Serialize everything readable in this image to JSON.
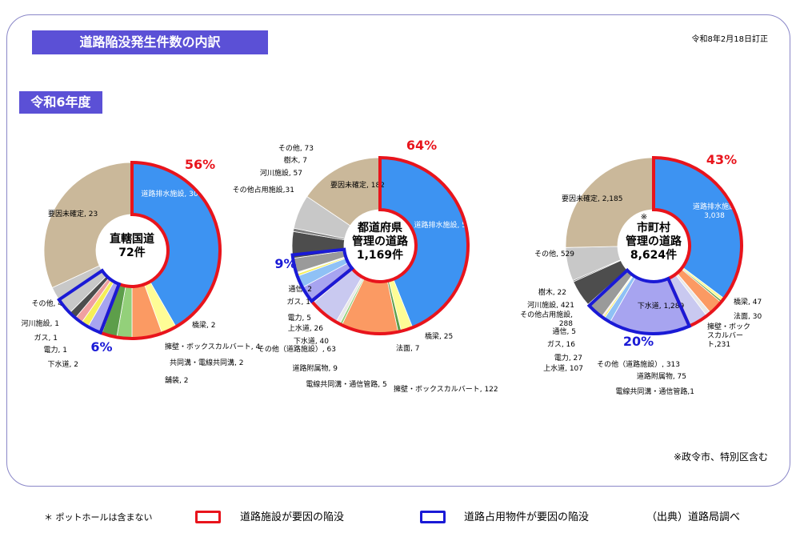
{
  "title": "道路陥没発生件数の内訳",
  "revision_note": "令和8年2月18日訂正",
  "year_label": "令和6年度",
  "footnote_right": "※政令市、特別区含む",
  "footer": {
    "asterisk_note": "＊ ポットホールは含まない",
    "legend_red": "道路施設が要因の陥没",
    "legend_blue": "道路占用物件が要因の陥没",
    "source": "（出典）道路局調べ"
  },
  "colors": {
    "accent": "#5b50d6",
    "facility_outline": "#e8141c",
    "occupancy_outline": "#1a1ad6",
    "drain": "#3d93f2",
    "bridge": "#fefc96",
    "retaining_wall": "#fb9a63",
    "utility_conduit": "#93d07a",
    "pavement": "#5d9e4a",
    "sewer": "#a7a4f0",
    "power": "#f5ef58",
    "gas": "#f0a0a0",
    "telecom": "#f8e6a6",
    "river": "#4d4d4d",
    "other_occupancy": "#9a9a9a",
    "trees": "#7a7a7a",
    "other": "#c8c8c8",
    "unknown": "#cab89a"
  },
  "chart_data": [
    {
      "type": "pie",
      "title": "直轄国道",
      "total": "72件",
      "facility_percent": "56%",
      "occupancy_percent": "6%",
      "labels": [
        {
          "key": "drain",
          "text": "道路排水施設, 30",
          "value": 30
        },
        {
          "key": "bridge",
          "text": "橋梁, 2",
          "value": 2
        },
        {
          "key": "retaining_wall",
          "text": "擁壁・ボックスカルバート, 4",
          "value": 4
        },
        {
          "key": "utility_conduit",
          "text": "共同溝・電線共同溝, 2",
          "value": 2
        },
        {
          "key": "pavement",
          "text": "舗装, 2",
          "value": 2
        },
        {
          "key": "sewer",
          "text": "下水道, 2",
          "value": 2
        },
        {
          "key": "power",
          "text": "電力, 1",
          "value": 1
        },
        {
          "key": "gas",
          "text": "ガス, 1",
          "value": 1
        },
        {
          "key": "river",
          "text": "河川施設, 1",
          "value": 1
        },
        {
          "key": "other",
          "text": "その他, 4",
          "value": 4
        },
        {
          "key": "unknown",
          "text": "要因未確定, 23",
          "value": 23
        }
      ]
    },
    {
      "type": "pie",
      "title": "都道府県\n管理の道路",
      "total": "1,169件",
      "facility_percent": "64%",
      "occupancy_percent": "9%",
      "labels": [
        {
          "key": "drain",
          "text": "道路排水施設, 514",
          "value": 514
        },
        {
          "key": "bridge",
          "text": "橋梁, 25",
          "value": 25
        },
        {
          "key": "pavement",
          "text": "法面, 7",
          "value": 7
        },
        {
          "key": "retaining_wall",
          "text": "擁壁・ボックスカルバート, 122",
          "value": 122
        },
        {
          "key": "utility_conduit",
          "text": "電線共同溝・通信管路, 5",
          "value": 5
        },
        {
          "key": "other_attach",
          "text": "道路附属物, 9",
          "value": 9
        },
        {
          "key": "other_facility",
          "text": "その他（道路施設）, 63",
          "value": 63
        },
        {
          "key": "sewer",
          "text": "下水道, 40",
          "value": 40
        },
        {
          "key": "water",
          "text": "上水道, 26",
          "value": 26
        },
        {
          "key": "power",
          "text": "電力, 5",
          "value": 5
        },
        {
          "key": "gas",
          "text": "ガス, 1",
          "value": 1
        },
        {
          "key": "telecom",
          "text": "通信, 2",
          "value": 2
        },
        {
          "key": "other_occupancy",
          "text": "その他占用施設,31",
          "value": 31
        },
        {
          "key": "river",
          "text": "河川施設, 57",
          "value": 57
        },
        {
          "key": "trees",
          "text": "樹木, 7",
          "value": 7
        },
        {
          "key": "other",
          "text": "その他, 73",
          "value": 73
        },
        {
          "key": "unknown",
          "text": "要因未確定, 182",
          "value": 182
        }
      ]
    },
    {
      "type": "pie",
      "title": "市町村\n管理の道路",
      "title_mark": "※",
      "total": "8,624件",
      "facility_percent": "43%",
      "occupancy_percent": "20%",
      "labels": [
        {
          "key": "drain",
          "text": "道路排水施設\n3,038",
          "value": 3038
        },
        {
          "key": "bridge",
          "text": "橋梁, 47",
          "value": 47
        },
        {
          "key": "pavement",
          "text": "法面, 30",
          "value": 30
        },
        {
          "key": "retaining_wall",
          "text": "擁壁・ボック\nスカルバー\nト,231",
          "value": 231
        },
        {
          "key": "utility_conduit",
          "text": "電線共同溝・通信管路,1",
          "value": 1
        },
        {
          "key": "other_attach",
          "text": "道路附属物, 75",
          "value": 75
        },
        {
          "key": "other_facility",
          "text": "その他（道路施設）, 313",
          "value": 313
        },
        {
          "key": "sewer",
          "text": "下水道, 1,289",
          "value": 1289
        },
        {
          "key": "water",
          "text": "上水道, 107",
          "value": 107
        },
        {
          "key": "power",
          "text": "電力, 27",
          "value": 27
        },
        {
          "key": "gas",
          "text": "ガス, 16",
          "value": 16
        },
        {
          "key": "telecom",
          "text": "通信, 5",
          "value": 5
        },
        {
          "key": "other_occupancy",
          "text": "その他占用施設,\n288",
          "value": 288
        },
        {
          "key": "river",
          "text": "河川施設, 421",
          "value": 421
        },
        {
          "key": "trees",
          "text": "樹木, 22",
          "value": 22
        },
        {
          "key": "other",
          "text": "その他, 529",
          "value": 529
        },
        {
          "key": "unknown",
          "text": "要因未確定, 2,185",
          "value": 2185
        }
      ]
    }
  ]
}
